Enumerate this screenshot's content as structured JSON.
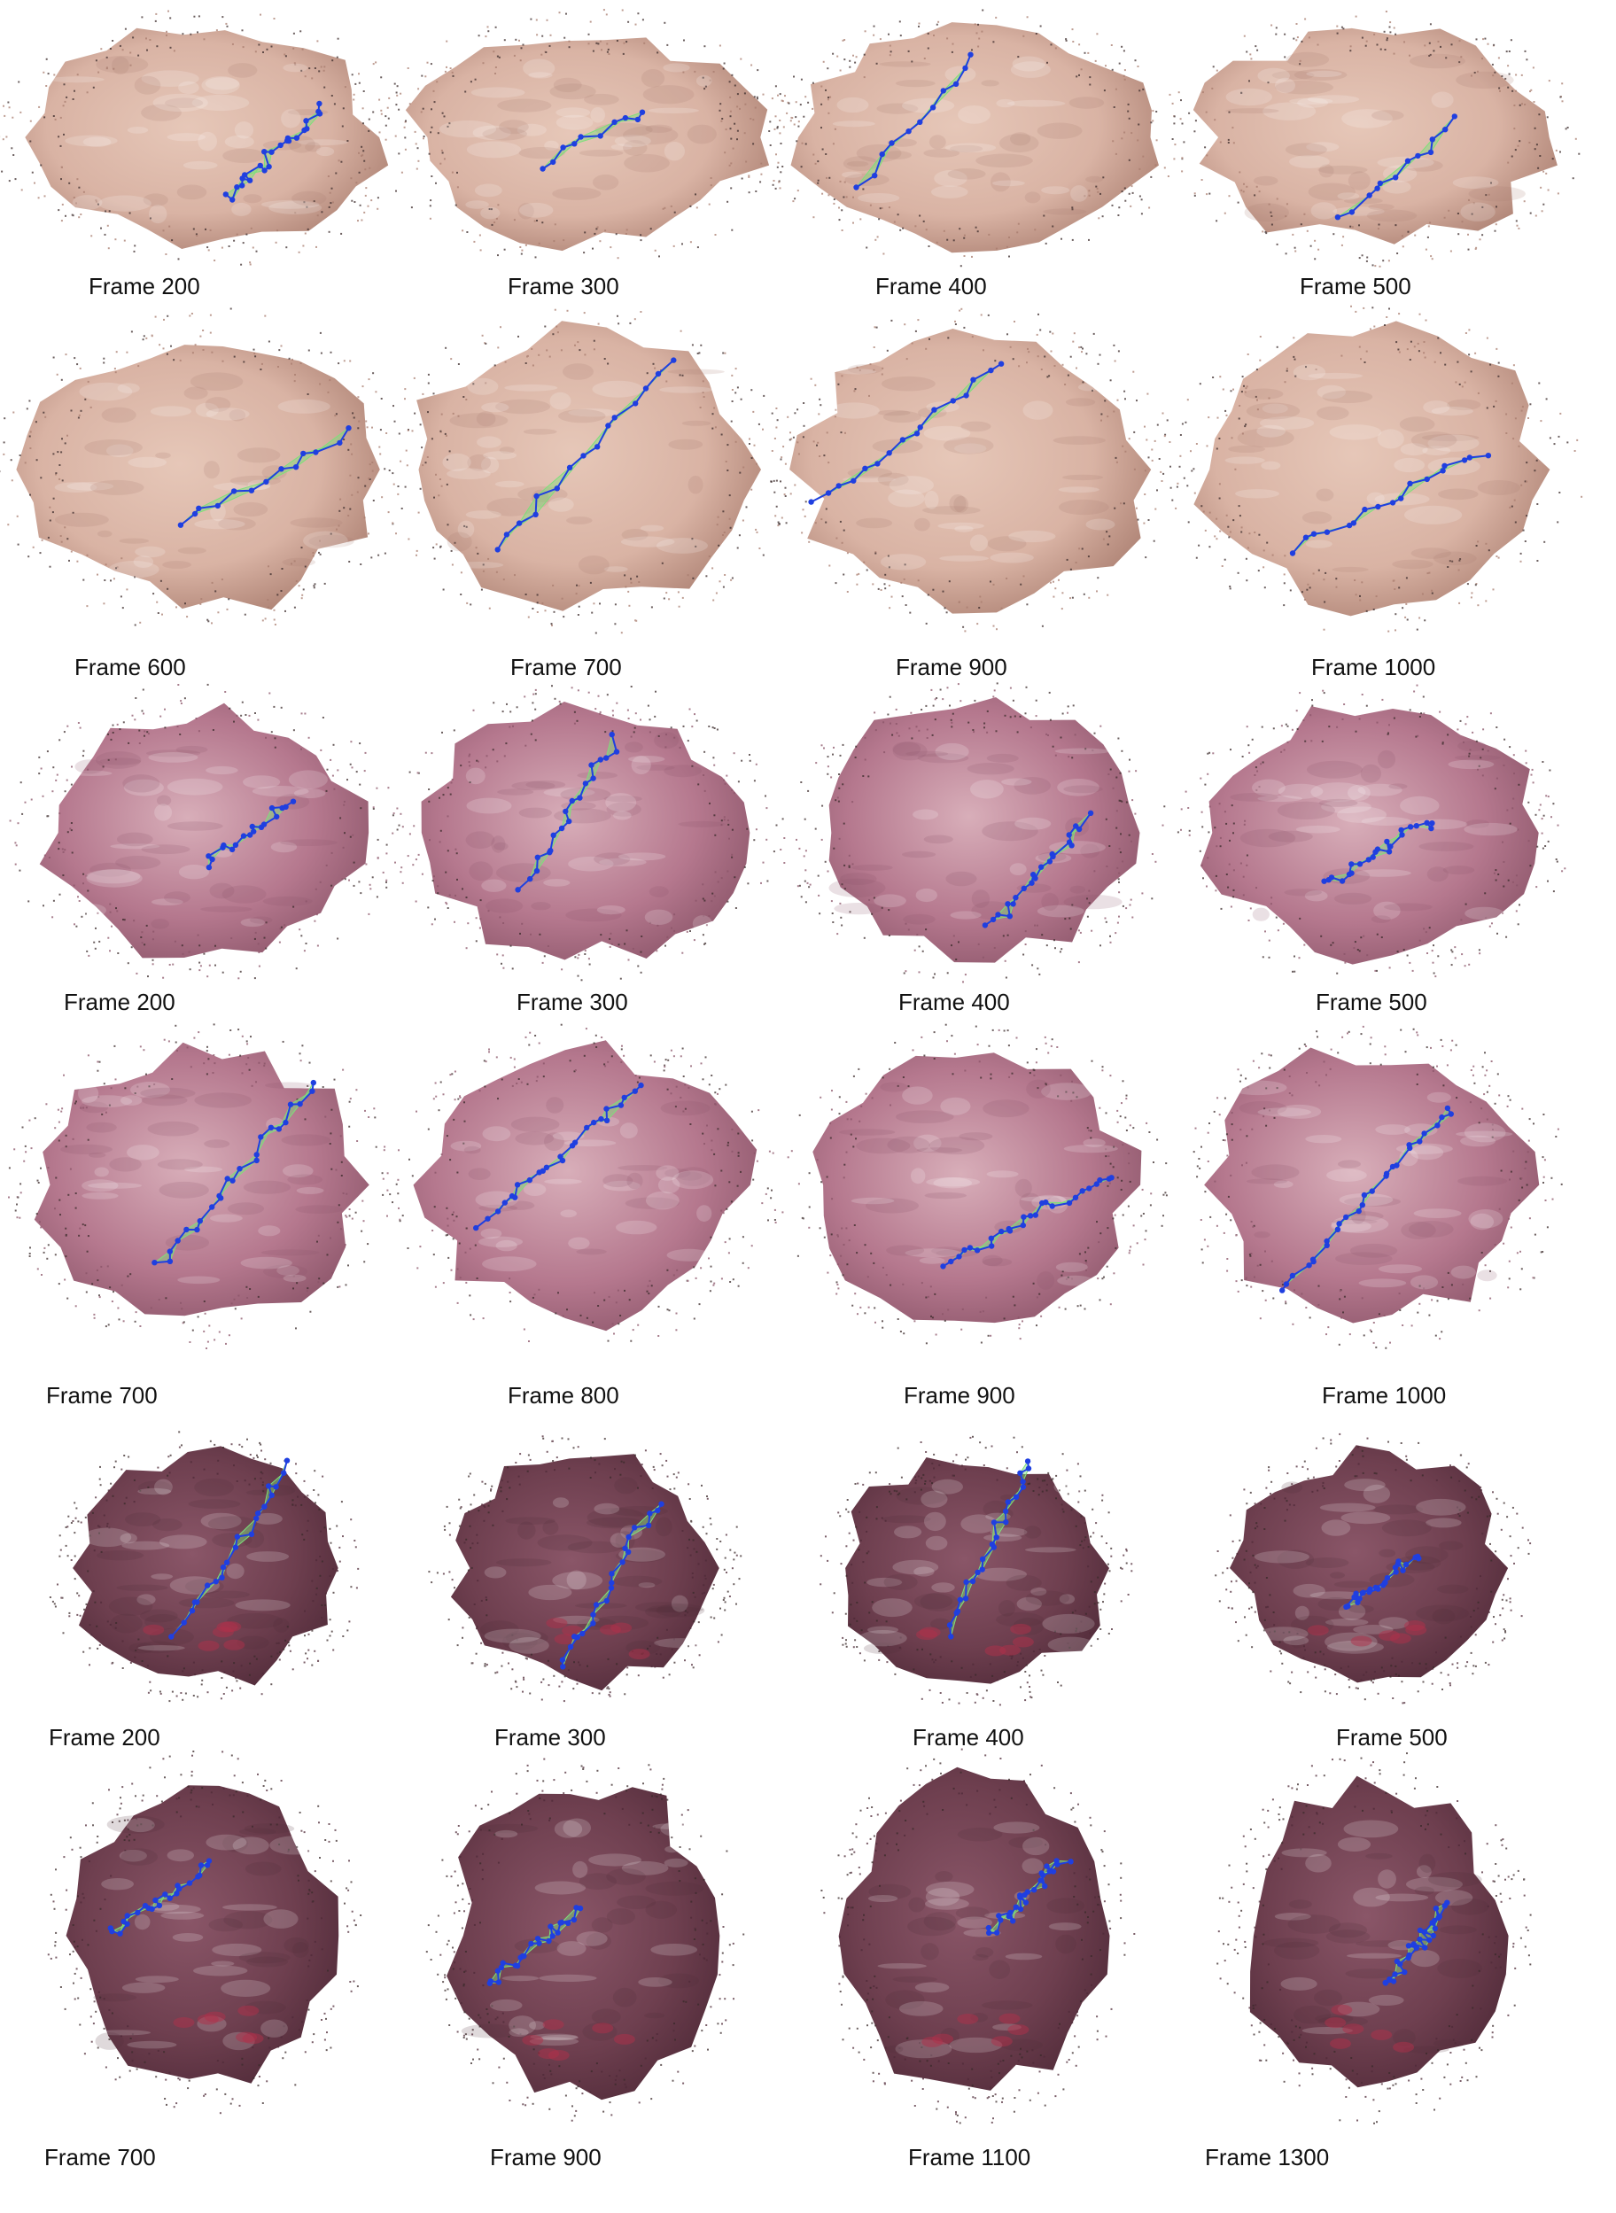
{
  "colors": {
    "tissue_row1": "#d9b3a4",
    "tissue_row1_dark": "#a87c6e",
    "tissue_pink": "#b5788e",
    "tissue_pink_light": "#d8aeb9",
    "tissue_dark": "#6e3f4f",
    "tissue_dark_deep": "#4f2a38",
    "blood": "#b0304a",
    "track_blue": "#1f3fe0",
    "mesh_green": "#7de07a"
  },
  "rows": [
    {
      "set": "sequence-1",
      "cells": [
        {
          "caption": "Frame 200",
          "image_label": "reconstruction-frame-200"
        },
        {
          "caption": "Frame 300",
          "image_label": "reconstruction-frame-300"
        },
        {
          "caption": "Frame 400",
          "image_label": "reconstruction-frame-400"
        },
        {
          "caption": "Frame 500",
          "image_label": "reconstruction-frame-500"
        }
      ]
    },
    {
      "set": "sequence-1",
      "cells": [
        {
          "caption": "Frame 600",
          "image_label": "reconstruction-frame-600"
        },
        {
          "caption": "Frame 700",
          "image_label": "reconstruction-frame-700"
        },
        {
          "caption": "Frame 900",
          "image_label": "reconstruction-frame-900"
        },
        {
          "caption": "Frame 1000",
          "image_label": "reconstruction-frame-1000"
        }
      ]
    },
    {
      "set": "sequence-2",
      "cells": [
        {
          "caption": "Frame 200",
          "image_label": "reconstruction-frame-200"
        },
        {
          "caption": "Frame 300",
          "image_label": "reconstruction-frame-300"
        },
        {
          "caption": "Frame 400",
          "image_label": "reconstruction-frame-400"
        },
        {
          "caption": "Frame 500",
          "image_label": "reconstruction-frame-500"
        }
      ]
    },
    {
      "set": "sequence-2",
      "cells": [
        {
          "caption": "Frame 700",
          "image_label": "reconstruction-frame-700"
        },
        {
          "caption": "Frame 800",
          "image_label": "reconstruction-frame-800"
        },
        {
          "caption": "Frame 900",
          "image_label": "reconstruction-frame-900"
        },
        {
          "caption": "Frame 1000",
          "image_label": "reconstruction-frame-1000"
        }
      ]
    },
    {
      "set": "sequence-3",
      "cells": [
        {
          "caption": "Frame 200",
          "image_label": "reconstruction-frame-200"
        },
        {
          "caption": "Frame 300",
          "image_label": "reconstruction-frame-300"
        },
        {
          "caption": "Frame 400",
          "image_label": "reconstruction-frame-400"
        },
        {
          "caption": "Frame 500",
          "image_label": "reconstruction-frame-500"
        }
      ]
    },
    {
      "set": "sequence-3",
      "cells": [
        {
          "caption": "Frame 700",
          "image_label": "reconstruction-frame-700"
        },
        {
          "caption": "Frame 900",
          "image_label": "reconstruction-frame-900"
        },
        {
          "caption": "Frame 1100",
          "image_label": "reconstruction-frame-1100"
        },
        {
          "caption": "Frame 1300",
          "image_label": "reconstruction-frame-1300"
        }
      ]
    }
  ]
}
